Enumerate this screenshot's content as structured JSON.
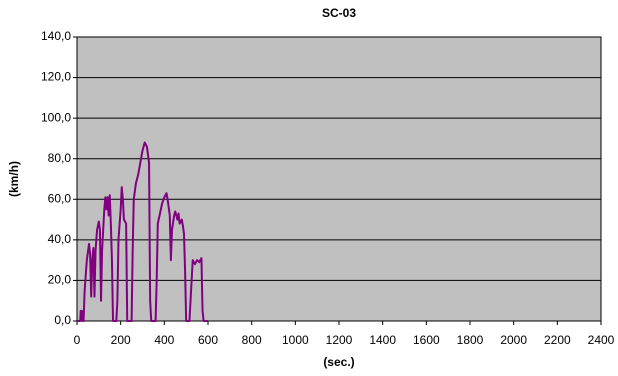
{
  "chart_data": {
    "type": "line",
    "title": "SC-03",
    "x_label": "(sec.)",
    "y_label": "(km/h)",
    "x": [
      0,
      15,
      17,
      22,
      24,
      30,
      35,
      45,
      55,
      60,
      65,
      70,
      75,
      80,
      85,
      92,
      100,
      105,
      110,
      115,
      125,
      130,
      135,
      140,
      145,
      150,
      155,
      160,
      165,
      180,
      185,
      190,
      200,
      205,
      210,
      215,
      225,
      230,
      250,
      255,
      260,
      270,
      280,
      290,
      300,
      310,
      320,
      330,
      335,
      340,
      360,
      365,
      370,
      380,
      390,
      400,
      410,
      415,
      425,
      430,
      435,
      445,
      450,
      460,
      465,
      470,
      480,
      485,
      490,
      495,
      500,
      515,
      520,
      525,
      530,
      540,
      550,
      560,
      570,
      575,
      580,
      600
    ],
    "values": [
      0,
      0,
      5,
      5,
      0,
      0,
      15,
      30,
      38,
      33,
      12,
      30,
      36,
      12,
      35,
      45,
      49,
      45,
      10,
      35,
      55,
      61,
      55,
      61,
      52,
      62,
      48,
      30,
      0,
      0,
      10,
      40,
      55,
      66,
      60,
      50,
      48,
      0,
      0,
      35,
      60,
      68,
      72,
      78,
      84,
      88,
      86,
      78,
      10,
      0,
      0,
      20,
      48,
      53,
      58,
      61,
      63,
      60,
      52,
      30,
      45,
      52,
      54,
      50,
      53,
      48,
      50,
      47,
      43,
      25,
      0,
      0,
      10,
      20,
      30,
      28,
      30,
      29,
      31,
      5,
      0,
      0
    ],
    "color": "#800080",
    "xlim": [
      0,
      2400
    ],
    "xticks": [
      0,
      200,
      400,
      600,
      800,
      1000,
      1200,
      1400,
      1600,
      1800,
      2000,
      2200,
      2400
    ],
    "ylim": [
      0,
      140
    ],
    "yticks": [
      {
        "value": 0,
        "label": "0,0"
      },
      {
        "value": 20,
        "label": "20,0"
      },
      {
        "value": 40,
        "label": "40,0"
      },
      {
        "value": 60,
        "label": "60,0"
      },
      {
        "value": 80,
        "label": "80,0"
      },
      {
        "value": 100,
        "label": "100,0"
      },
      {
        "value": 120,
        "label": "120,0"
      },
      {
        "value": 140,
        "label": "140,0"
      }
    ],
    "grid": true
  }
}
